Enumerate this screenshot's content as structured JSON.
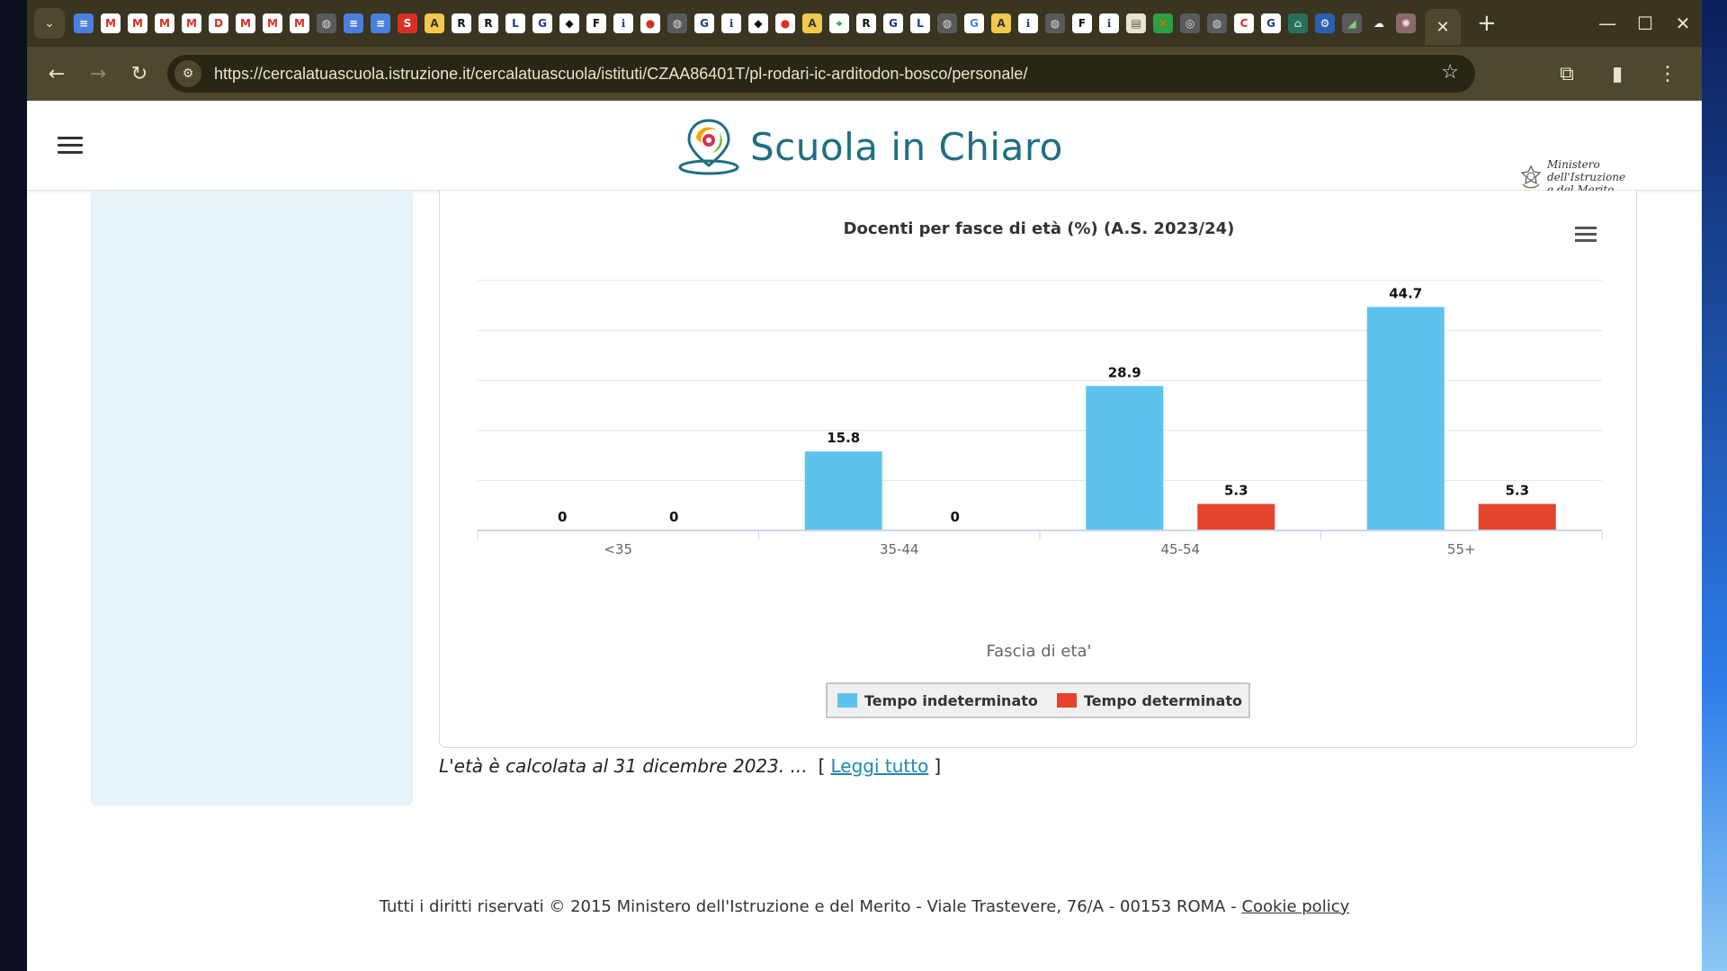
{
  "browser": {
    "url": "https://cercalatuascuola.istruzione.it/cercalatuascuola/istituti/CZAA86401T/pl-rodari-ic-arditodon-bosco/personale/",
    "tab_favicons": [
      {
        "glyph": "≡",
        "bg": "#4a7fe0",
        "fg": "#ffffff"
      },
      {
        "glyph": "M",
        "bg": "#ffffff",
        "fg": "#d93025"
      },
      {
        "glyph": "M",
        "bg": "#ffffff",
        "fg": "#d93025"
      },
      {
        "glyph": "M",
        "bg": "#ffffff",
        "fg": "#d93025"
      },
      {
        "glyph": "M",
        "bg": "#ffffff",
        "fg": "#d93025"
      },
      {
        "glyph": "D",
        "bg": "#ffffff",
        "fg": "#d93025"
      },
      {
        "glyph": "M",
        "bg": "#ffffff",
        "fg": "#d93025"
      },
      {
        "glyph": "M",
        "bg": "#ffffff",
        "fg": "#d93025"
      },
      {
        "glyph": "M",
        "bg": "#ffffff",
        "fg": "#d93025"
      },
      {
        "glyph": "◍",
        "bg": "#5a5a5a",
        "fg": "#dddddd"
      },
      {
        "glyph": "≡",
        "bg": "#4a7fe0",
        "fg": "#ffffff"
      },
      {
        "glyph": "≡",
        "bg": "#4a7fe0",
        "fg": "#ffffff"
      },
      {
        "glyph": "S",
        "bg": "#d93025",
        "fg": "#ffffff"
      },
      {
        "glyph": "A",
        "bg": "#f2c94c",
        "fg": "#333333"
      },
      {
        "glyph": "R",
        "bg": "#ffffff",
        "fg": "#111111"
      },
      {
        "glyph": "R",
        "bg": "#ffffff",
        "fg": "#111111"
      },
      {
        "glyph": "L",
        "bg": "#ffffff",
        "fg": "#1a3a8a"
      },
      {
        "glyph": "G",
        "bg": "#ffffff",
        "fg": "#1a3a8a"
      },
      {
        "glyph": "◆",
        "bg": "#ffffff",
        "fg": "#111111"
      },
      {
        "glyph": "F",
        "bg": "#ffffff",
        "fg": "#111111"
      },
      {
        "glyph": "ℹ",
        "bg": "#ffffff",
        "fg": "#1a3a8a"
      },
      {
        "glyph": "●",
        "bg": "#ffffff",
        "fg": "#d93025"
      },
      {
        "glyph": "◍",
        "bg": "#5a5a5a",
        "fg": "#dddddd"
      },
      {
        "glyph": "G",
        "bg": "#ffffff",
        "fg": "#1a3a8a"
      },
      {
        "glyph": "ℹ",
        "bg": "#ffffff",
        "fg": "#1a3a8a"
      },
      {
        "glyph": "◆",
        "bg": "#ffffff",
        "fg": "#111111"
      },
      {
        "glyph": "●",
        "bg": "#ffffff",
        "fg": "#d93025"
      },
      {
        "glyph": "A",
        "bg": "#f2c94c",
        "fg": "#333333"
      },
      {
        "glyph": "⌖",
        "bg": "#ffffff",
        "fg": "#2f9e44"
      },
      {
        "glyph": "R",
        "bg": "#ffffff",
        "fg": "#111111"
      },
      {
        "glyph": "G",
        "bg": "#ffffff",
        "fg": "#1a3a8a"
      },
      {
        "glyph": "L",
        "bg": "#ffffff",
        "fg": "#1a3a8a"
      },
      {
        "glyph": "◍",
        "bg": "#5a5a5a",
        "fg": "#dddddd"
      },
      {
        "glyph": "G",
        "bg": "#ffffff",
        "fg": "#4285f4"
      },
      {
        "glyph": "A",
        "bg": "#f2c94c",
        "fg": "#333333"
      },
      {
        "glyph": "ℹ",
        "bg": "#ffffff",
        "fg": "#1a3a8a"
      },
      {
        "glyph": "◍",
        "bg": "#5a5a5a",
        "fg": "#dddddd"
      },
      {
        "glyph": "F",
        "bg": "#ffffff",
        "fg": "#111111"
      },
      {
        "glyph": "ℹ",
        "bg": "#ffffff",
        "fg": "#1a3a8a"
      },
      {
        "glyph": "▤",
        "bg": "#e8e4d0",
        "fg": "#555555"
      },
      {
        "glyph": "✕",
        "bg": "#2f9e44",
        "fg": "#ff6600"
      },
      {
        "glyph": "◎",
        "bg": "#5a5a5a",
        "fg": "#dddddd"
      },
      {
        "glyph": "◍",
        "bg": "#5a5a5a",
        "fg": "#dddddd"
      },
      {
        "glyph": "C",
        "bg": "#ffffff",
        "fg": "#d93025"
      },
      {
        "glyph": "G",
        "bg": "#ffffff",
        "fg": "#1a3a8a"
      },
      {
        "glyph": "⌂",
        "bg": "#2a6f5a",
        "fg": "#9ee0c0"
      },
      {
        "glyph": "⚙",
        "bg": "#2a5fb0",
        "fg": "#ffffff"
      },
      {
        "glyph": "◢",
        "bg": "#5a5a5a",
        "fg": "#7fd07f"
      },
      {
        "glyph": "☁",
        "bg": "#3a3520",
        "fg": "#ffffff"
      },
      {
        "glyph": "✺",
        "bg": "#8a6a6a",
        "fg": "#ffdddd"
      }
    ],
    "icons": {
      "tab_search": "chevron-down-icon",
      "close_tab": "close-icon",
      "new_tab": "plus-icon",
      "minimize": "minimize-icon",
      "maximize": "maximize-icon",
      "close_window": "close-icon",
      "back": "arrow-left-icon",
      "forward": "arrow-right-icon",
      "reload": "reload-icon",
      "site_info": "tune-icon",
      "bookmark": "star-icon",
      "extensions": "puzzle-icon",
      "side_panel": "side-panel-icon",
      "menu": "kebab-menu-icon"
    }
  },
  "header": {
    "logo_text": "Scuola in Chiaro",
    "ministry_line1": "Ministero dell'Istruzione",
    "ministry_line2": "e del Merito"
  },
  "chart_data": {
    "type": "bar",
    "title": "Docenti per fasce di età (%) (A.S. 2023/24)",
    "xlabel": "Fascia di eta'",
    "ylabel": "",
    "categories": [
      "<35",
      "35-44",
      "45-54",
      "55+"
    ],
    "series": [
      {
        "name": "Tempo indeterminato",
        "color": "#5ec3ec",
        "values": [
          0,
          15.8,
          28.9,
          44.7
        ]
      },
      {
        "name": "Tempo determinato",
        "color": "#e5432b",
        "values": [
          0,
          0,
          5.3,
          5.3
        ]
      }
    ],
    "ylim": [
      0,
      50
    ],
    "grid": true,
    "legend_position": "bottom-center",
    "data_labels": true
  },
  "note": {
    "text": "L'età è calcolata al 31 dicembre 2023. ...",
    "open_bracket": "[",
    "link": "Leggi tutto",
    "close_bracket": "]"
  },
  "footer": {
    "text": "Tutti i diritti riservati © 2015 Ministero dell'Istruzione e del Merito - Viale Trastevere, 76/A - 00153 ROMA - ",
    "link": "Cookie policy"
  }
}
